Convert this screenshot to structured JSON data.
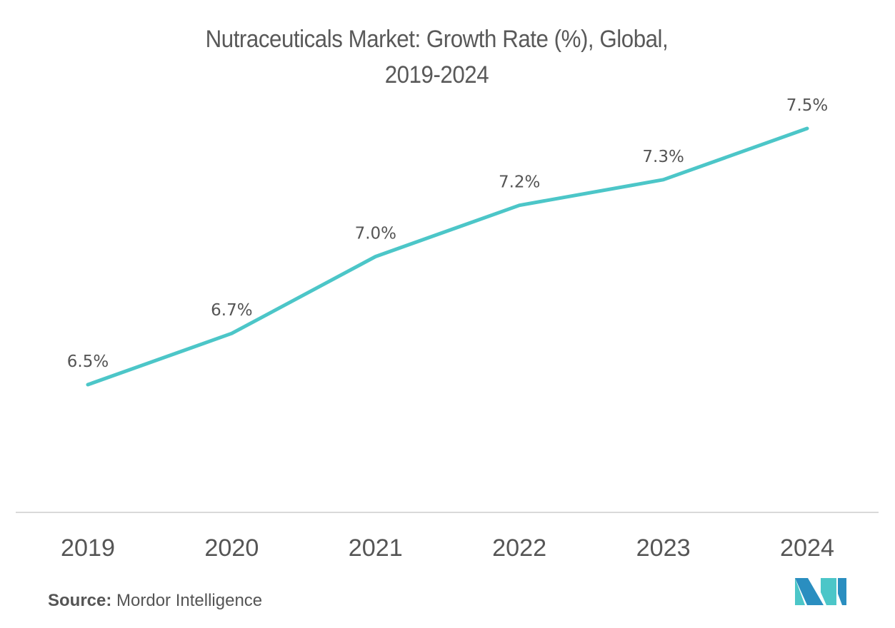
{
  "chart_data": {
    "type": "line",
    "title": "Nutraceuticals Market: Growth Rate (%), Global, 2019-2024",
    "title_lines": [
      "Nutraceuticals Market: Growth Rate (%), Global,",
      "2019-2024"
    ],
    "categories": [
      "2019",
      "2020",
      "2021",
      "2022",
      "2023",
      "2024"
    ],
    "series": [
      {
        "name": "Growth Rate (%)",
        "values": [
          6.5,
          6.7,
          7.0,
          7.2,
          7.3,
          7.5
        ],
        "labels": [
          "6.5%",
          "6.7%",
          "7.0%",
          "7.2%",
          "7.3%",
          "7.5%"
        ],
        "color": "#4cc6c8"
      }
    ],
    "xlabel": "",
    "ylabel": "",
    "ylim": [
      6.0,
      7.5
    ],
    "grid": false,
    "legend": "none",
    "y_axis_visible": false
  },
  "colors": {
    "line": "#4cc6c8",
    "text": "#555555",
    "baseline": "#d9d9d9",
    "logo_dark": "#2a8ec0",
    "logo_light": "#4cc6c8"
  },
  "footer": {
    "source_label": "Source:",
    "source_value": " Mordor Intelligence"
  },
  "logo": {
    "icon": "mordor-intelligence-logo"
  }
}
